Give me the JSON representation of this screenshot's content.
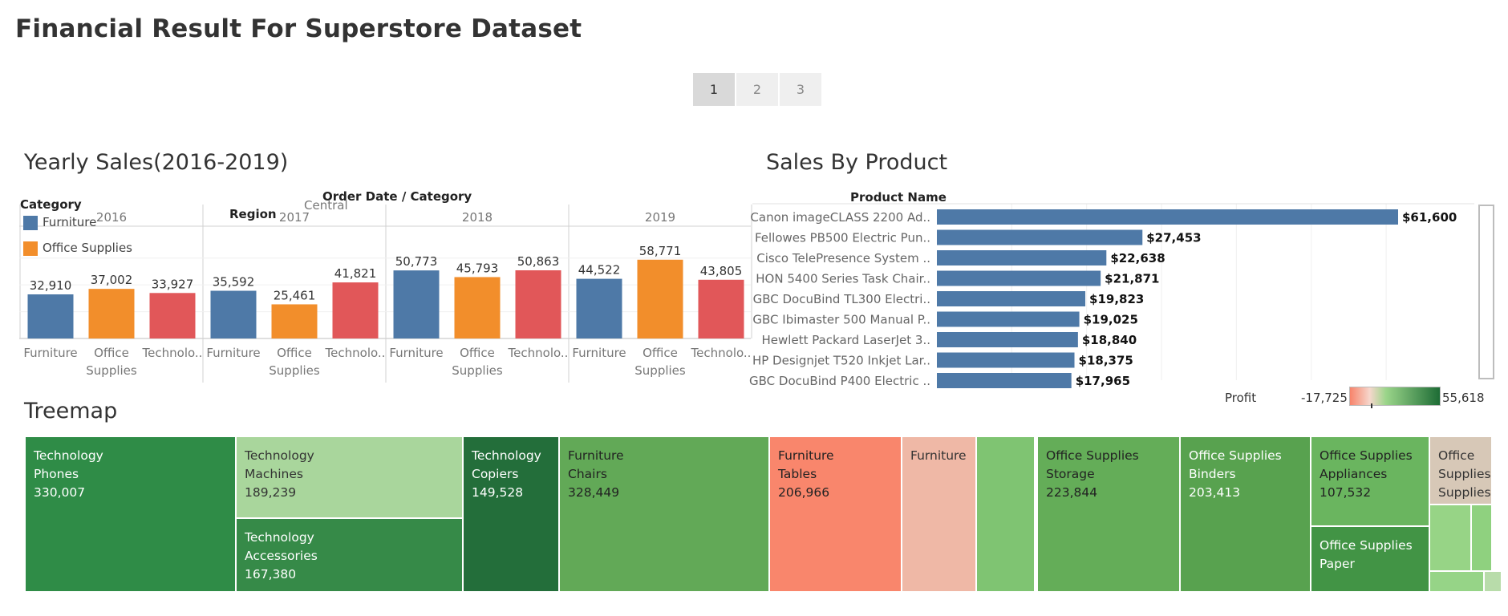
{
  "page_title": "Financial Result For Superstore Dataset",
  "pager": [
    "1",
    "2",
    "3"
  ],
  "pager_active": 0,
  "yearly": {
    "title": "Yearly Sales(2016-2019)",
    "header_label": "Order Date  /  Category",
    "legend_title": "Category",
    "legend_items": [
      {
        "label": "Furniture",
        "color": "#4e79a7"
      },
      {
        "label": "Office Supplies",
        "color": "#f28e2b"
      }
    ],
    "region_label": "Region",
    "region_value": "Central"
  },
  "sales_by_product": {
    "title": "Sales By Product",
    "column_header": "Product Name"
  },
  "treemap": {
    "title": "Treemap",
    "cells": [
      {
        "lines": [
          "Technology",
          "Phones",
          "330,007"
        ],
        "color": "#2f8c47",
        "text": "#ffffff"
      },
      {
        "lines": [
          "Technology",
          "Machines",
          "189,239"
        ],
        "color": "#a9d69c",
        "text": "#333333"
      },
      {
        "lines": [
          "Technology",
          "Accessories",
          "167,380"
        ],
        "color": "#368a48",
        "text": "#ffffff"
      },
      {
        "lines": [
          "Technology",
          "Copiers",
          "149,528"
        ],
        "color": "#236e3a",
        "text": "#ffffff"
      },
      {
        "lines": [
          "Furniture",
          "Chairs",
          "328,449"
        ],
        "color": "#62a957",
        "text": "#222222"
      },
      {
        "lines": [
          "Furniture",
          "Tables",
          "206,966"
        ],
        "color": "#f9866c",
        "text": "#222222"
      },
      {
        "lines": [
          "Furniture"
        ],
        "color": "#efb8a6",
        "text": "#333333"
      },
      {
        "lines": [],
        "color": "#7fc472",
        "text": "#333333"
      },
      {
        "lines": [
          "Office Supplies",
          "Storage",
          "223,844"
        ],
        "color": "#64ad58",
        "text": "#222222"
      },
      {
        "lines": [
          "Office Supplies",
          "Binders",
          "203,413"
        ],
        "color": "#58a24f",
        "text": "#ffffff"
      },
      {
        "lines": [
          "Office Supplies",
          "Appliances",
          "107,532"
        ],
        "color": "#6ab55f",
        "text": "#222222"
      },
      {
        "lines": [
          "Office Supplies",
          "Paper"
        ],
        "color": "#429445",
        "text": "#ffffff"
      },
      {
        "lines": [
          "Office",
          "Supplies",
          "Supplies"
        ],
        "color": "#d7c8b7",
        "text": "#333333"
      },
      {
        "lines": [],
        "color": "#97d486",
        "text": "#333333"
      },
      {
        "lines": [],
        "color": "#8fd17f",
        "text": "#333333"
      },
      {
        "lines": [],
        "color": "#96d487",
        "text": "#333333"
      },
      {
        "lines": [],
        "color": "#b8dcaa",
        "text": "#333333"
      }
    ]
  },
  "profit_legend": {
    "label": "Profit",
    "min_label": "-17,725",
    "max_label": "55,618",
    "colors": [
      "#f7836a",
      "#f6d7cc",
      "#9bd58a",
      "#1d6c35"
    ]
  },
  "chart_data": [
    {
      "type": "bar",
      "title": "Yearly Sales(2016-2019)",
      "groups": [
        "2016",
        "2017",
        "2018",
        "2019"
      ],
      "categories": [
        "Furniture",
        "Office Supplies",
        "Technolo.."
      ],
      "category_display": [
        [
          "Furniture"
        ],
        [
          "Office",
          "Supplies"
        ],
        [
          "Technolo.."
        ]
      ],
      "category_colors": [
        "#4e79a7",
        "#f28e2b",
        "#e15759"
      ],
      "values": [
        [
          32910,
          37002,
          33927
        ],
        [
          35592,
          25461,
          41821
        ],
        [
          50773,
          45793,
          50863
        ],
        [
          44522,
          58771,
          43805
        ]
      ],
      "value_labels": [
        [
          "32,910",
          "37,002",
          "33,927"
        ],
        [
          "35,592",
          "25,461",
          "41,821"
        ],
        [
          "50,773",
          "45,793",
          "50,863"
        ],
        [
          "44,522",
          "58,771",
          "43,805"
        ]
      ],
      "ylim": [
        0,
        70000
      ],
      "grid": true
    },
    {
      "type": "bar",
      "orientation": "horizontal",
      "title": "Sales By Product",
      "ylabel": "Product Name",
      "categories": [
        "Canon imageCLASS 2200 Ad..",
        "Fellowes PB500 Electric Pun..",
        "Cisco TelePresence System ..",
        "HON 5400 Series Task Chair..",
        "GBC DocuBind TL300 Electri..",
        "GBC Ibimaster 500 Manual P..",
        "Hewlett Packard LaserJet 3..",
        "HP Designjet T520 Inkjet Lar..",
        "GBC DocuBind P400 Electric .."
      ],
      "values": [
        61600,
        27453,
        22638,
        21871,
        19823,
        19025,
        18840,
        18375,
        17965
      ],
      "value_labels": [
        "$61,600",
        "$27,453",
        "$22,638",
        "$21,871",
        "$19,823",
        "$19,025",
        "$18,840",
        "$18,375",
        "$17,965"
      ],
      "color": "#4e79a7",
      "xlim": [
        0,
        70000
      ],
      "grid": true
    }
  ]
}
